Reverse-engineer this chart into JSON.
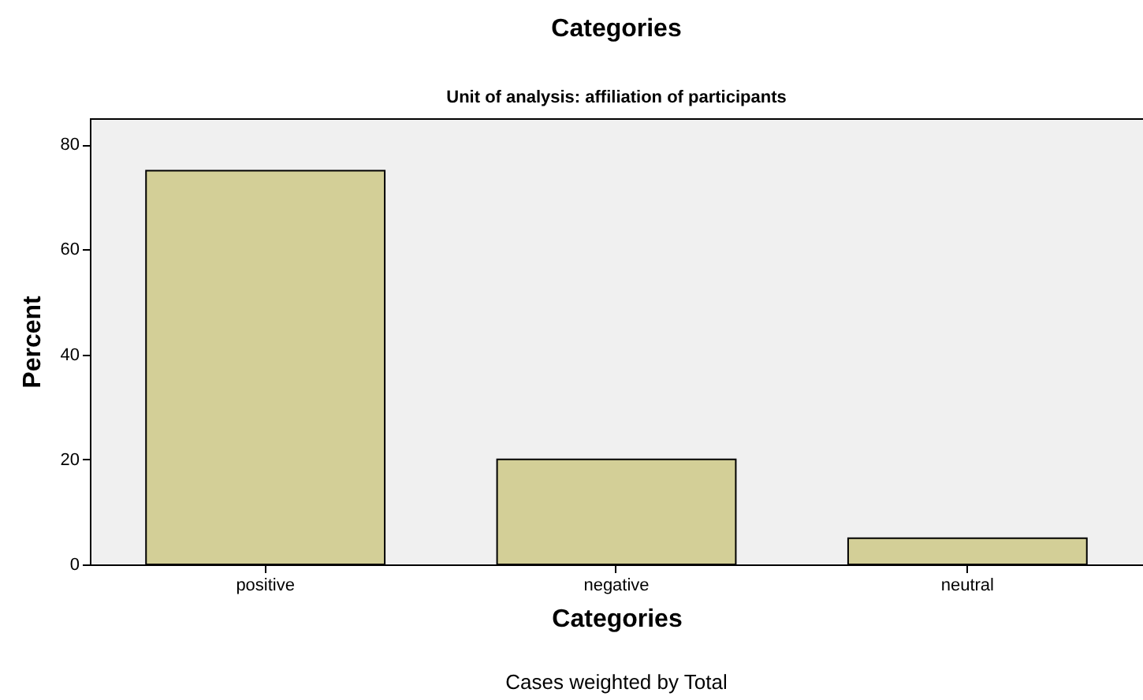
{
  "chart_data": {
    "type": "bar",
    "title": "Categories",
    "subtitle": "Unit of analysis: affiliation of participants",
    "xlabel": "Categories",
    "ylabel": "Percent",
    "annotations": [
      "Cases weighted by Total"
    ],
    "categories": [
      "positive",
      "negative",
      "neutral"
    ],
    "values": [
      75,
      20,
      5
    ],
    "color": "#d3cf97",
    "ylim": [
      0,
      85
    ],
    "yticks": [
      0,
      20,
      40,
      60,
      80
    ],
    "grid": false
  }
}
